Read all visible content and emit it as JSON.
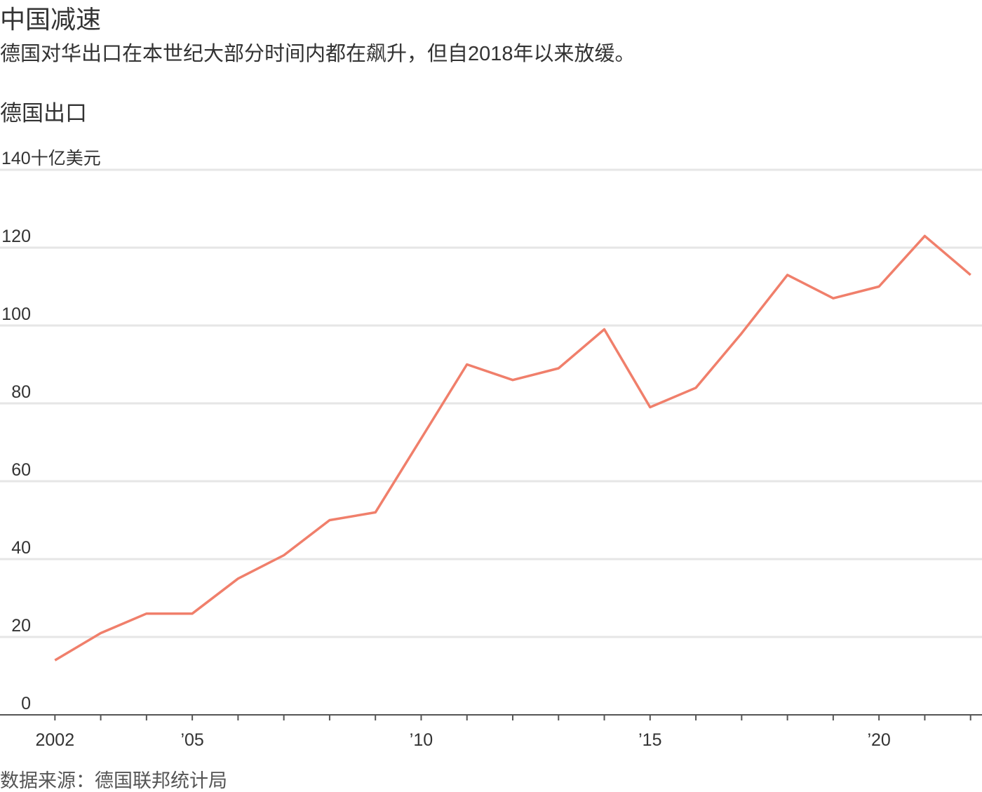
{
  "chart_data": {
    "type": "line",
    "title": "中国减速",
    "subtitle": "德国对华出口在本世纪大部分时间内都在飙升，但自2018年以来放缓。",
    "y_label": "德国出口",
    "source": "数据来源：德国联邦统计局",
    "x": [
      2002,
      2003,
      2004,
      2005,
      2006,
      2007,
      2008,
      2009,
      2010,
      2011,
      2012,
      2013,
      2014,
      2015,
      2016,
      2017,
      2018,
      2019,
      2020,
      2021,
      2022
    ],
    "series": [
      {
        "color": "#f07f6b",
        "values": [
          14,
          21,
          26,
          26,
          35,
          41,
          50,
          52,
          71,
          90,
          86,
          89,
          99,
          79,
          84,
          98,
          113,
          107,
          110,
          123,
          113
        ]
      }
    ],
    "xlim": [
      2000.8,
      2022.25
    ],
    "xticks": [
      {
        "value": 2002,
        "label": "2002"
      },
      {
        "value": 2005,
        "label": "’05"
      },
      {
        "value": 2010,
        "label": "’10"
      },
      {
        "value": 2015,
        "label": "’15"
      },
      {
        "value": 2020,
        "label": "’20"
      }
    ],
    "x_minor_ticks": [
      2002,
      2003,
      2004,
      2005,
      2006,
      2007,
      2008,
      2009,
      2010,
      2011,
      2012,
      2013,
      2014,
      2015,
      2016,
      2017,
      2018,
      2019,
      2020,
      2021,
      2022
    ],
    "ylim": [
      0,
      140
    ],
    "yticks": [
      0,
      20,
      40,
      60,
      80,
      100,
      120,
      {
        "value": 140,
        "label": "140十亿美元"
      }
    ],
    "grid": true
  }
}
